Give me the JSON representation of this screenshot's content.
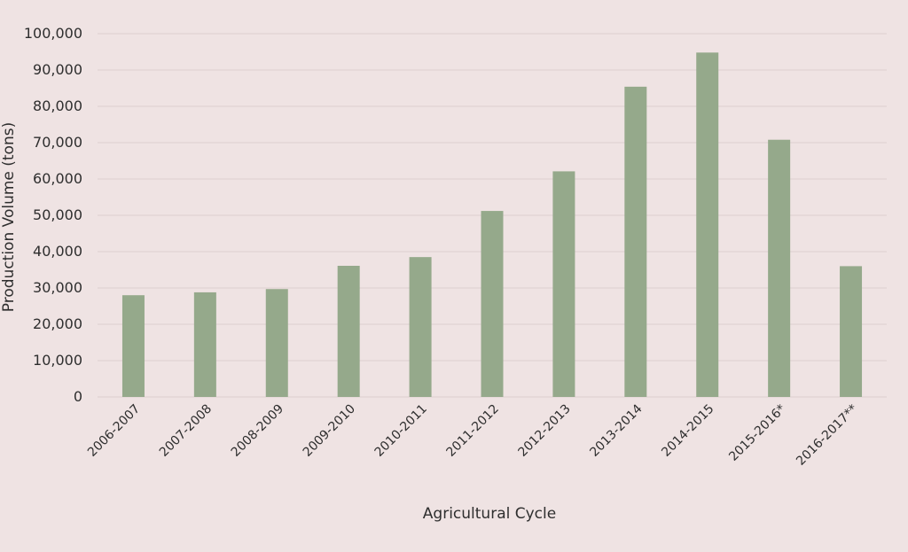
{
  "chart_data": {
    "type": "bar",
    "title": "",
    "xlabel": "Agricultural Cycle",
    "ylabel": "Production Volume (tons)",
    "ylim": [
      0,
      100000
    ],
    "y_ticks": [
      "0",
      "10,000",
      "20,000",
      "30,000",
      "40,000",
      "50,000",
      "60,000",
      "70,000",
      "80,000",
      "90,000",
      "100,000"
    ],
    "grid": true,
    "legend": "none",
    "bar_color": "#95a98b",
    "categories": [
      "2006-2007",
      "2007-2008",
      "2008-2009",
      "2009-2010",
      "2010-2011",
      "2011-2012",
      "2012-2013",
      "2013-2014",
      "2014-2015",
      "2015-2016*",
      "2016-2017**"
    ],
    "values": [
      28000,
      28800,
      29700,
      36100,
      38500,
      51200,
      62100,
      85400,
      94800,
      70800,
      36000
    ]
  }
}
